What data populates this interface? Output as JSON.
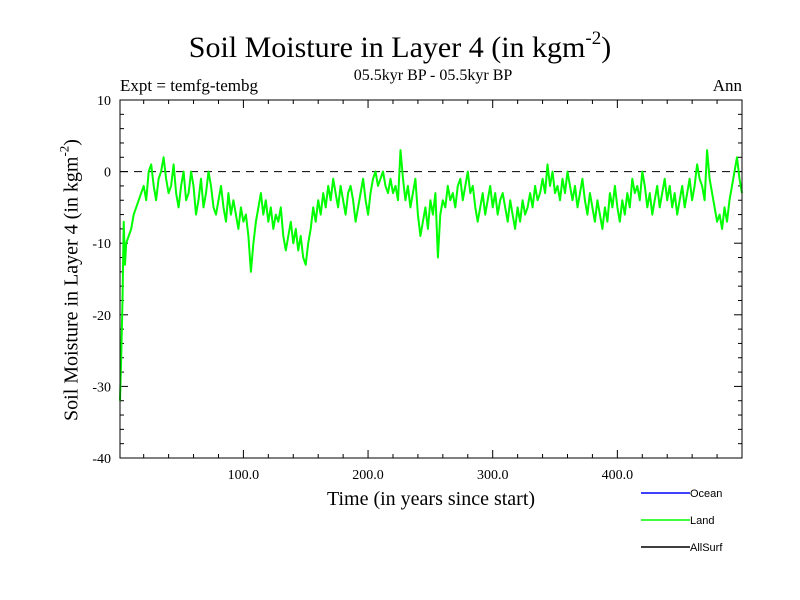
{
  "header": {
    "title": "Soil Moisture in Layer 4 (in kgm",
    "title_sup": "-2",
    "title_end": ")",
    "subtitle": "05.5kyr BP - 05.5kyr BP",
    "expt": "Expt = temfg-tembg",
    "season": "Ann"
  },
  "colors": {
    "ocean": "#0000ff",
    "land": "#00ff00",
    "allsurf": "#000000"
  },
  "chart_data": {
    "type": "line",
    "title": "Soil Moisture in Layer 4 (in kgm-2)",
    "xlabel": "Time (in years since start)",
    "ylabel": "Soil Moisture in Layer 4 (in kgm-2)",
    "ylabel_text": "Soil Moisture in Layer 4 (in kgm",
    "ylabel_sup": "-2",
    "ylabel_end": ")",
    "xlim": [
      1,
      500
    ],
    "ylim": [
      -40,
      10
    ],
    "xticks": [
      100,
      200,
      300,
      400
    ],
    "xtick_labels": [
      "100.0",
      "200.0",
      "300.0",
      "400.0"
    ],
    "yticks": [
      -40,
      -30,
      -20,
      -10,
      0,
      10
    ],
    "ytick_labels": [
      "-40",
      "-30",
      "-20",
      "-10",
      "0",
      "10"
    ],
    "reference_line": 0,
    "legend": [
      "Ocean",
      "Land",
      "AllSurf"
    ],
    "legend_position": "bottom-right",
    "series": [
      {
        "name": "Ocean",
        "color": "#0000ff",
        "points": []
      },
      {
        "name": "Land",
        "color": "#00ff00",
        "points": [
          [
            1,
            -32
          ],
          [
            2,
            -26
          ],
          [
            3,
            -18
          ],
          [
            4,
            -7
          ],
          [
            5,
            -13
          ],
          [
            6,
            -10
          ],
          [
            8,
            -9
          ],
          [
            10,
            -8
          ],
          [
            12,
            -6
          ],
          [
            14,
            -5
          ],
          [
            16,
            -4
          ],
          [
            18,
            -3
          ],
          [
            20,
            -2
          ],
          [
            22,
            -4
          ],
          [
            24,
            0
          ],
          [
            26,
            1
          ],
          [
            28,
            -2
          ],
          [
            30,
            -4
          ],
          [
            32,
            -1
          ],
          [
            34,
            0
          ],
          [
            36,
            2
          ],
          [
            38,
            -1
          ],
          [
            40,
            -3
          ],
          [
            42,
            -2
          ],
          [
            44,
            1
          ],
          [
            46,
            -3
          ],
          [
            48,
            -5
          ],
          [
            50,
            -2
          ],
          [
            52,
            0
          ],
          [
            54,
            -4
          ],
          [
            56,
            -3
          ],
          [
            58,
            0
          ],
          [
            60,
            -2
          ],
          [
            62,
            -6
          ],
          [
            64,
            -4
          ],
          [
            66,
            -1
          ],
          [
            68,
            -5
          ],
          [
            70,
            -3
          ],
          [
            72,
            0
          ],
          [
            74,
            -2
          ],
          [
            76,
            -5
          ],
          [
            78,
            -6
          ],
          [
            80,
            -4
          ],
          [
            82,
            -2
          ],
          [
            84,
            -5
          ],
          [
            86,
            -7
          ],
          [
            88,
            -3
          ],
          [
            90,
            -6
          ],
          [
            92,
            -4
          ],
          [
            94,
            -6
          ],
          [
            96,
            -8
          ],
          [
            98,
            -5
          ],
          [
            100,
            -7
          ],
          [
            102,
            -6
          ],
          [
            104,
            -9
          ],
          [
            106,
            -14
          ],
          [
            108,
            -10
          ],
          [
            110,
            -7
          ],
          [
            112,
            -5
          ],
          [
            114,
            -3
          ],
          [
            116,
            -6
          ],
          [
            118,
            -4
          ],
          [
            120,
            -7
          ],
          [
            122,
            -5
          ],
          [
            124,
            -8
          ],
          [
            126,
            -6
          ],
          [
            128,
            -7
          ],
          [
            130,
            -5
          ],
          [
            132,
            -9
          ],
          [
            134,
            -11
          ],
          [
            136,
            -9
          ],
          [
            138,
            -7
          ],
          [
            140,
            -10
          ],
          [
            142,
            -8
          ],
          [
            144,
            -11
          ],
          [
            146,
            -9
          ],
          [
            148,
            -12
          ],
          [
            150,
            -13
          ],
          [
            152,
            -10
          ],
          [
            154,
            -8
          ],
          [
            156,
            -5
          ],
          [
            158,
            -7
          ],
          [
            160,
            -4
          ],
          [
            162,
            -6
          ],
          [
            164,
            -3
          ],
          [
            166,
            -5
          ],
          [
            168,
            -2
          ],
          [
            170,
            -4
          ],
          [
            172,
            -1
          ],
          [
            174,
            -3
          ],
          [
            176,
            -5
          ],
          [
            178,
            -2
          ],
          [
            180,
            -4
          ],
          [
            182,
            -6
          ],
          [
            184,
            -3
          ],
          [
            186,
            -2
          ],
          [
            188,
            -4
          ],
          [
            190,
            -7
          ],
          [
            192,
            -5
          ],
          [
            194,
            -3
          ],
          [
            196,
            -1
          ],
          [
            198,
            -4
          ],
          [
            200,
            -6
          ],
          [
            202,
            -3
          ],
          [
            204,
            -1
          ],
          [
            206,
            0
          ],
          [
            208,
            -2
          ],
          [
            210,
            -1
          ],
          [
            212,
            0
          ],
          [
            214,
            -2
          ],
          [
            216,
            -3
          ],
          [
            218,
            -1
          ],
          [
            220,
            -3
          ],
          [
            222,
            -2
          ],
          [
            224,
            -4
          ],
          [
            226,
            3
          ],
          [
            228,
            -1
          ],
          [
            230,
            -4
          ],
          [
            232,
            -2
          ],
          [
            234,
            -5
          ],
          [
            236,
            -3
          ],
          [
            238,
            -1
          ],
          [
            240,
            -6
          ],
          [
            242,
            -9
          ],
          [
            244,
            -7
          ],
          [
            246,
            -5
          ],
          [
            248,
            -8
          ],
          [
            250,
            -4
          ],
          [
            252,
            -6
          ],
          [
            254,
            -3
          ],
          [
            256,
            -12
          ],
          [
            258,
            -6
          ],
          [
            260,
            -4
          ],
          [
            262,
            -5
          ],
          [
            264,
            -2
          ],
          [
            266,
            -4
          ],
          [
            268,
            -3
          ],
          [
            270,
            -5
          ],
          [
            272,
            -2
          ],
          [
            274,
            -1
          ],
          [
            276,
            -4
          ],
          [
            278,
            -2
          ],
          [
            280,
            0
          ],
          [
            282,
            -3
          ],
          [
            284,
            -2
          ],
          [
            286,
            -5
          ],
          [
            288,
            -7
          ],
          [
            290,
            -5
          ],
          [
            292,
            -3
          ],
          [
            294,
            -6
          ],
          [
            296,
            -4
          ],
          [
            298,
            -2
          ],
          [
            300,
            -5
          ],
          [
            302,
            -3
          ],
          [
            304,
            -6
          ],
          [
            306,
            -4
          ],
          [
            308,
            -3
          ],
          [
            310,
            -5
          ],
          [
            312,
            -7
          ],
          [
            314,
            -4
          ],
          [
            316,
            -6
          ],
          [
            318,
            -8
          ],
          [
            320,
            -5
          ],
          [
            322,
            -7
          ],
          [
            324,
            -4
          ],
          [
            326,
            -6
          ],
          [
            328,
            -5
          ],
          [
            330,
            -3
          ],
          [
            332,
            -5
          ],
          [
            334,
            -2
          ],
          [
            336,
            -4
          ],
          [
            338,
            -3
          ],
          [
            340,
            -1
          ],
          [
            342,
            -3
          ],
          [
            344,
            1
          ],
          [
            346,
            -2
          ],
          [
            348,
            0
          ],
          [
            350,
            -3
          ],
          [
            352,
            -2
          ],
          [
            354,
            -4
          ],
          [
            356,
            -1
          ],
          [
            358,
            -3
          ],
          [
            360,
            0
          ],
          [
            362,
            -2
          ],
          [
            364,
            -4
          ],
          [
            366,
            -2
          ],
          [
            368,
            -5
          ],
          [
            370,
            -3
          ],
          [
            372,
            -1
          ],
          [
            374,
            -4
          ],
          [
            376,
            -6
          ],
          [
            378,
            -3
          ],
          [
            380,
            -5
          ],
          [
            382,
            -7
          ],
          [
            384,
            -4
          ],
          [
            386,
            -6
          ],
          [
            388,
            -8
          ],
          [
            390,
            -5
          ],
          [
            392,
            -7
          ],
          [
            394,
            -3
          ],
          [
            396,
            -5
          ],
          [
            398,
            -2
          ],
          [
            400,
            -5
          ],
          [
            402,
            -7
          ],
          [
            404,
            -4
          ],
          [
            406,
            -6
          ],
          [
            408,
            -3
          ],
          [
            410,
            -5
          ],
          [
            412,
            -1
          ],
          [
            414,
            -3
          ],
          [
            416,
            -2
          ],
          [
            418,
            -4
          ],
          [
            420,
            0
          ],
          [
            422,
            -2
          ],
          [
            424,
            -5
          ],
          [
            426,
            -3
          ],
          [
            428,
            -6
          ],
          [
            430,
            -4
          ],
          [
            432,
            -2
          ],
          [
            434,
            -5
          ],
          [
            436,
            -3
          ],
          [
            438,
            -1
          ],
          [
            440,
            -4
          ],
          [
            442,
            -2
          ],
          [
            444,
            -5
          ],
          [
            446,
            -3
          ],
          [
            448,
            -6
          ],
          [
            450,
            -4
          ],
          [
            452,
            -2
          ],
          [
            454,
            -5
          ],
          [
            456,
            -3
          ],
          [
            458,
            -1
          ],
          [
            460,
            -4
          ],
          [
            462,
            -2
          ],
          [
            464,
            1
          ],
          [
            466,
            -1
          ],
          [
            468,
            -2
          ],
          [
            470,
            -4
          ],
          [
            472,
            3
          ],
          [
            474,
            -1
          ],
          [
            476,
            -3
          ],
          [
            478,
            -5
          ],
          [
            480,
            -7
          ],
          [
            482,
            -6
          ],
          [
            484,
            -8
          ],
          [
            486,
            -5
          ],
          [
            488,
            -7
          ],
          [
            490,
            -4
          ],
          [
            492,
            -2
          ],
          [
            494,
            0
          ],
          [
            496,
            2
          ],
          [
            498,
            -1
          ],
          [
            500,
            -3
          ]
        ]
      },
      {
        "name": "AllSurf",
        "color": "#000000",
        "points": []
      }
    ]
  }
}
